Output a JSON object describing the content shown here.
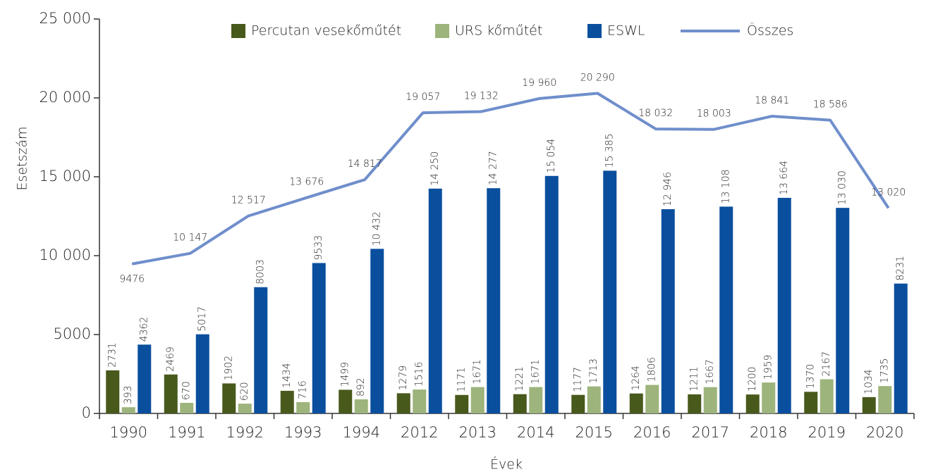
{
  "chart_data": {
    "type": "bar",
    "ylabel": "Esetszám",
    "xlabel": "Évek",
    "categories": [
      "1990",
      "1991",
      "1992",
      "1993",
      "1994",
      "2012",
      "2013",
      "2014",
      "2015",
      "2016",
      "2017",
      "2018",
      "2019",
      "2020"
    ],
    "ylim": [
      0,
      25000
    ],
    "yticks": [
      0,
      5000,
      {
        "value": 10000,
        "label": "10 000"
      },
      {
        "value": 15000,
        "label": "15 000"
      },
      {
        "value": 20000,
        "label": "20 000"
      },
      {
        "value": 25000,
        "label": "25 000"
      }
    ],
    "legend": "top",
    "series": [
      {
        "name": "Percutan vesekőműtét",
        "type": "bar",
        "color": "#48591c",
        "values": [
          2731,
          2469,
          1902,
          1434,
          1499,
          1279,
          1171,
          1221,
          1177,
          1264,
          1211,
          1200,
          1370,
          1034
        ],
        "value_labels": [
          "2731",
          "2469",
          "1902",
          "1434",
          "1499",
          "1279",
          "1171",
          "1221",
          "1177",
          "1264",
          "1211",
          "1200",
          "1370",
          "1034"
        ]
      },
      {
        "name": "URS kőműtét",
        "type": "bar",
        "color": "#9db47c",
        "values": [
          393,
          670,
          620,
          716,
          892,
          1516,
          1671,
          1671,
          1713,
          1806,
          1667,
          1959,
          2167,
          1735
        ],
        "value_labels": [
          "393",
          "670",
          "620",
          "716",
          "892",
          "1516",
          "1671",
          "1671",
          "1713",
          "1806",
          "1667",
          "1959",
          "2167",
          "1735"
        ]
      },
      {
        "name": "ESWL",
        "type": "bar",
        "color": "#0a4f9e",
        "values": [
          4362,
          5017,
          8003,
          9533,
          10432,
          14250,
          14277,
          15054,
          15385,
          12946,
          13108,
          13664,
          13030,
          8231
        ],
        "value_labels": [
          "4362",
          "5017",
          "8003",
          "9533",
          "10 432",
          "14 250",
          "14 277",
          "15 054",
          "15 385",
          "12 946",
          "13 108",
          "13 664",
          "13 030",
          "8231"
        ]
      },
      {
        "name": "Összes",
        "type": "line",
        "color": "#6f8ecb",
        "values": [
          9476,
          10147,
          12517,
          13676,
          14817,
          19057,
          19132,
          19960,
          20290,
          18032,
          18003,
          18841,
          18586,
          13020
        ],
        "value_labels": [
          "9476",
          "10 147",
          "12 517",
          "13 676",
          "14 817",
          "19 057",
          "19 132",
          "19 960",
          "20 290",
          "18 032",
          "18 003",
          "18 841",
          "18 586",
          "13 020"
        ]
      }
    ]
  }
}
